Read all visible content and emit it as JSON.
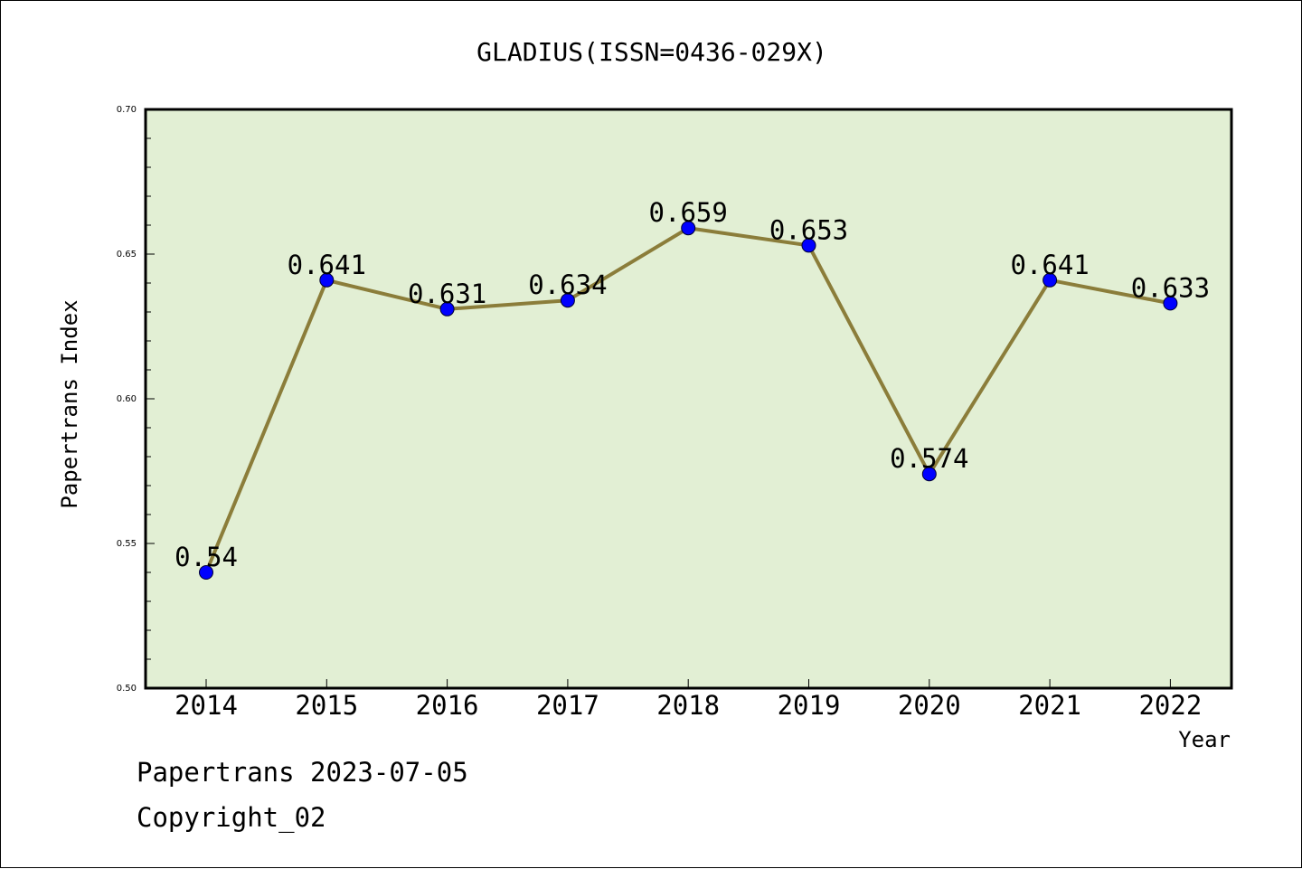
{
  "chart_data": {
    "type": "line",
    "title": "GLADIUS(ISSN=0436-029X)",
    "xlabel": "Year",
    "ylabel": "Papertrans Index",
    "categories": [
      "2014",
      "2015",
      "2016",
      "2017",
      "2018",
      "2019",
      "2020",
      "2021",
      "2022"
    ],
    "values": [
      0.54,
      0.641,
      0.631,
      0.634,
      0.659,
      0.653,
      0.574,
      0.641,
      0.633
    ],
    "data_labels": [
      "0.54",
      "0.641",
      "0.631",
      "0.634",
      "0.659",
      "0.653",
      "0.574",
      "0.641",
      "0.633"
    ],
    "ylim": [
      0.5,
      0.7
    ],
    "yticks": [
      "0.50",
      "0.55",
      "0.60",
      "0.65",
      "0.70"
    ],
    "grid": false,
    "colors": {
      "plot_background": "#e2efd4",
      "line": "#8b7d3a",
      "marker": "#0000ff"
    }
  },
  "footer": {
    "source": "Papertrans 2023-07-05",
    "copyright": "Copyright_02"
  }
}
